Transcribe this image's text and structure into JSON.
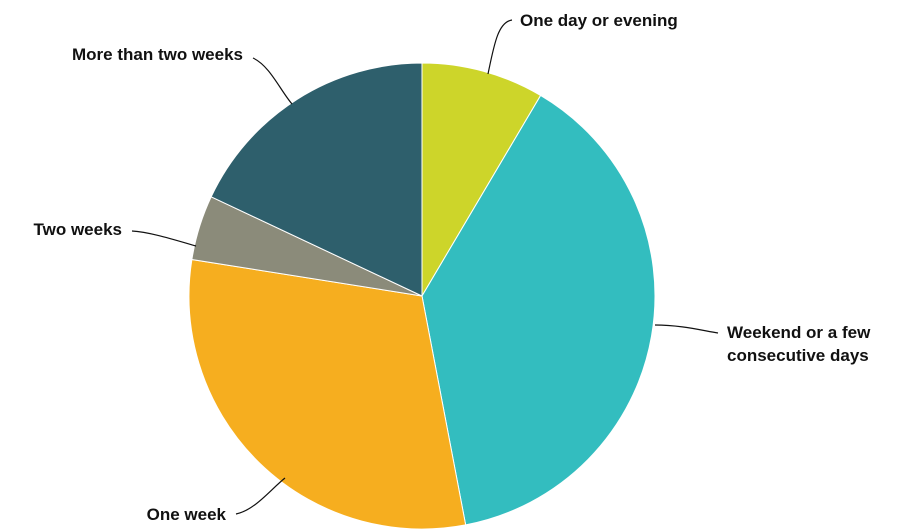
{
  "chart_data": {
    "type": "pie",
    "title": "",
    "categories": [
      "One day or evening",
      "Weekend or a few consecutive days",
      "One week",
      "Two weeks",
      "More than two weeks"
    ],
    "values": [
      8.5,
      38.5,
      30.5,
      4.5,
      18.0
    ],
    "unit": "%",
    "colors": [
      "#cdd52a",
      "#33bdbf",
      "#f6ae1f",
      "#8b8b7a",
      "#2e5f6c"
    ],
    "label_lines": [
      [
        "One day or evening"
      ],
      [
        "Weekend or a few",
        "consecutive days"
      ],
      [
        "One week"
      ],
      [
        "Two weeks"
      ],
      [
        "More than two weeks"
      ]
    ],
    "start_angle_deg": 0,
    "direction": "clockwise",
    "legend": "none"
  }
}
